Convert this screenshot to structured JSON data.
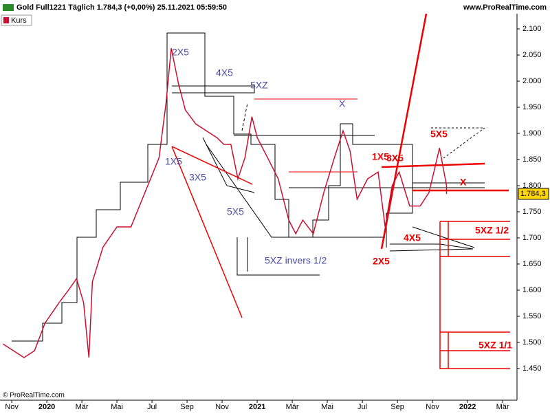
{
  "chart_data": {
    "type": "line",
    "title": "Gold Full1221 Täglich 1.784,3 (+0,00%) 25.11.2021 05:59:50",
    "source": "www.ProRealTime.com",
    "copyright": "© ProRealTime.com",
    "last_value": 1784.3,
    "last_label": "1.784,3",
    "x": [
      -0.5,
      0.1,
      0.7,
      1.3,
      1.9,
      2.7,
      3.3,
      3.7,
      4.1,
      4.4,
      4.6,
      5.2,
      6.0,
      6.8,
      7.6,
      8.4,
      8.8,
      9.1,
      9.5,
      9.9,
      10.5,
      11.1,
      11.7,
      12.1,
      12.5,
      12.9,
      13.3,
      13.7,
      14.0,
      14.6,
      15.2,
      15.8,
      16.2,
      16.6,
      17.2,
      17.8,
      18.4,
      18.9,
      19.3,
      19.7,
      20.3,
      20.9,
      21.3,
      21.7,
      22.1,
      22.7,
      23.3,
      23.8,
      24.4,
      24.8,
      24.8
    ],
    "series": [
      {
        "name": "Kurs",
        "color": "#c8102e",
        "values": [
          1497,
          1484,
          1471,
          1484,
          1537,
          1576,
          1603,
          1622,
          1576,
          1471,
          1616,
          1682,
          1721,
          1721,
          1787,
          1853,
          1958,
          2063,
          1997,
          1945,
          1918,
          1905,
          1892,
          1879,
          1879,
          1813,
          1853,
          1932,
          1892,
          1853,
          1813,
          1734,
          1708,
          1734,
          1708,
          1787,
          1853,
          1905,
          1866,
          1774,
          1813,
          1826,
          1721,
          1800,
          1826,
          1761,
          1761,
          1787,
          1872,
          1800,
          1784
        ]
      }
    ],
    "xlim": [
      -0.67,
      28.82
    ],
    "xticks": [
      {
        "value": 0,
        "label": "Nov"
      },
      {
        "value": 2,
        "label": "2020"
      },
      {
        "value": 4,
        "label": "Mär"
      },
      {
        "value": 6,
        "label": "Mai"
      },
      {
        "value": 8,
        "label": "Jul"
      },
      {
        "value": 10,
        "label": "Sep"
      },
      {
        "value": 12,
        "label": "Nov"
      },
      {
        "value": 14,
        "label": "2021"
      },
      {
        "value": 16,
        "label": "Mär"
      },
      {
        "value": 18,
        "label": "Mai"
      },
      {
        "value": 20,
        "label": "Jul"
      },
      {
        "value": 22,
        "label": "Sep"
      },
      {
        "value": 24,
        "label": "Nov"
      },
      {
        "value": 26,
        "label": "2022"
      },
      {
        "value": 28,
        "label": "Mär"
      }
    ],
    "ylim": [
      1392,
      2129
    ],
    "yticks": [
      {
        "value": 1450,
        "label": "1.450"
      },
      {
        "value": 1500,
        "label": "1.500"
      },
      {
        "value": 1550,
        "label": "1.550"
      },
      {
        "value": 1600,
        "label": "1.600"
      },
      {
        "value": 1650,
        "label": "1.650"
      },
      {
        "value": 1700,
        "label": "1.700"
      },
      {
        "value": 1750,
        "label": "1.750"
      },
      {
        "value": 1800,
        "label": "1.800"
      },
      {
        "value": 1850,
        "label": "1.850"
      },
      {
        "value": 1900,
        "label": "1.900"
      },
      {
        "value": 1950,
        "label": "1.950"
      },
      {
        "value": 2000,
        "label": "2.000"
      },
      {
        "value": 2050,
        "label": "2.050"
      },
      {
        "value": 2100,
        "label": "2.100"
      }
    ],
    "annotations": [
      "2X5",
      "4X5",
      "5XZ",
      "X",
      "1X5",
      "3X5",
      "5X5",
      "5XZ invers 1/2",
      "5X5",
      "1X5",
      "3X5",
      "X",
      "5XZ 1/2",
      "4X5",
      "2X5",
      "5XZ 1/1"
    ]
  }
}
